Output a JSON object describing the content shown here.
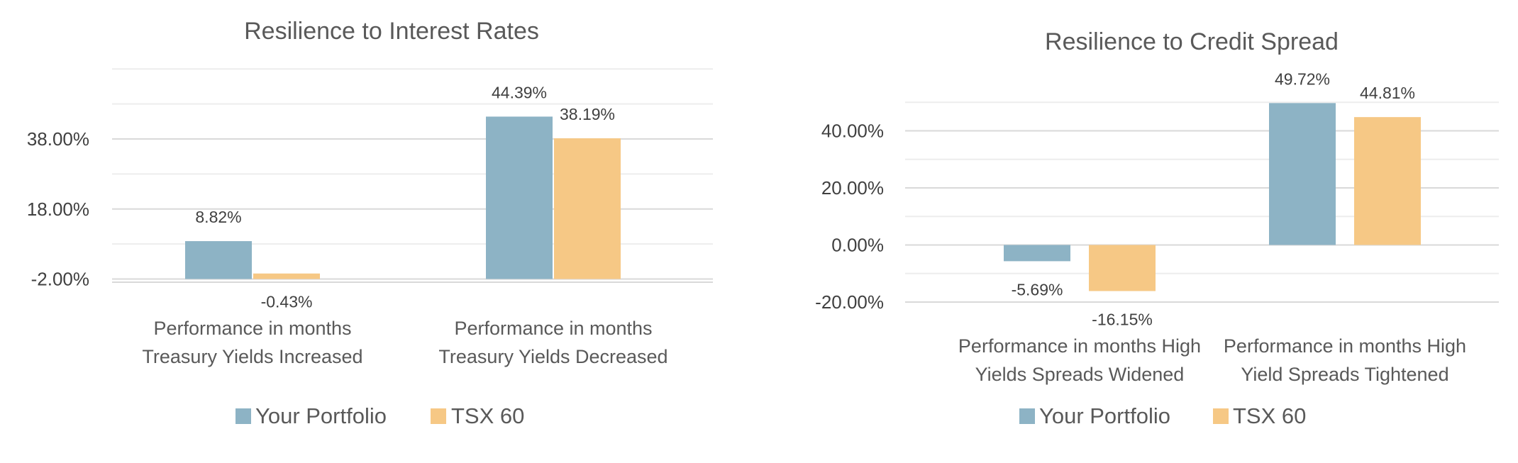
{
  "chart_data": [
    {
      "type": "bar",
      "title": "Resilience to Interest Rates",
      "categories": [
        [
          "Performance in months",
          "Treasury Yields Increased"
        ],
        [
          "Performance in months",
          "Treasury Yields Decreased"
        ]
      ],
      "series": [
        {
          "name": "Your Portfolio",
          "values": [
            8.82,
            44.39
          ],
          "labels": [
            "8.82%",
            "44.39%"
          ],
          "color": "#8DB3C5"
        },
        {
          "name": "TSX 60",
          "values": [
            -0.43,
            38.19
          ],
          "labels": [
            "-0.43%",
            "38.19%"
          ],
          "color": "#F6C885"
        }
      ],
      "yticks": [
        "38.00%",
        "18.00%",
        "-2.00%"
      ],
      "ytick_values": [
        38,
        18,
        -2
      ],
      "ylim": [
        -2,
        58
      ],
      "grid": true,
      "legend": "bottom"
    },
    {
      "type": "bar",
      "title": "Resilience to Credit Spread",
      "categories": [
        [
          "Performance in months High",
          "Yields Spreads Widened"
        ],
        [
          "Performance in months High",
          "Yield Spreads Tightened"
        ]
      ],
      "series": [
        {
          "name": "Your Portfolio",
          "values": [
            -5.69,
            49.72
          ],
          "labels": [
            "-5.69%",
            "49.72%"
          ],
          "color": "#8DB3C5"
        },
        {
          "name": "TSX 60",
          "values": [
            -16.15,
            44.81
          ],
          "labels": [
            "-16.15%",
            "44.81%"
          ],
          "color": "#F6C885"
        }
      ],
      "yticks": [
        "40.00%",
        "20.00%",
        "0.00%",
        "-20.00%"
      ],
      "ytick_values": [
        40,
        20,
        0,
        -20
      ],
      "ylim": [
        -20,
        50
      ],
      "grid": true,
      "legend": "bottom"
    }
  ]
}
